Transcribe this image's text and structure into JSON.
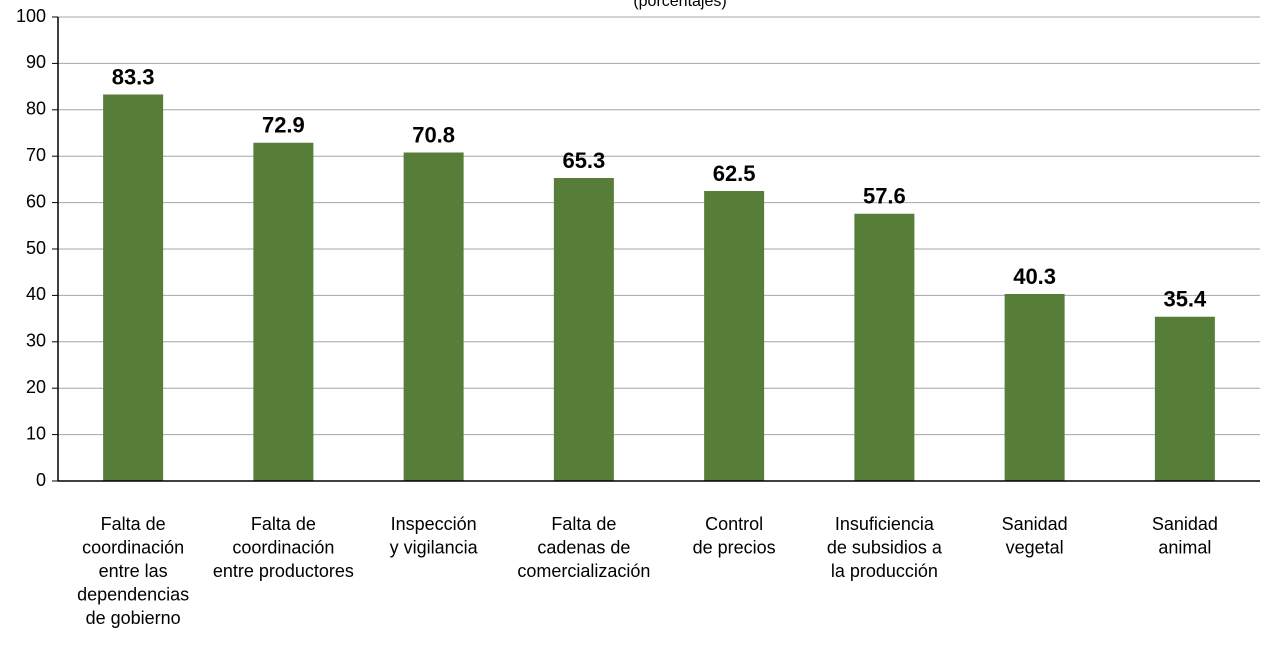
{
  "chart_data": {
    "type": "bar",
    "subtitle": "(porcentajes)",
    "categories": [
      [
        "Falta de",
        "coordinación",
        "entre las",
        "dependencias",
        "de gobierno"
      ],
      [
        "Falta de",
        "coordinación",
        "entre productores"
      ],
      [
        "Inspección",
        "y vigilancia"
      ],
      [
        "Falta de",
        "cadenas de",
        "comercialización"
      ],
      [
        "Control",
        "de precios"
      ],
      [
        "Insuficiencia",
        "de subsidios a",
        "la producción"
      ],
      [
        "Sanidad",
        "vegetal"
      ],
      [
        "Sanidad",
        "animal"
      ]
    ],
    "values": [
      83.3,
      72.9,
      70.8,
      65.3,
      62.5,
      57.6,
      40.3,
      35.4
    ],
    "color": "#577e38",
    "ylim": [
      0,
      100
    ],
    "yticks": [
      0,
      10,
      20,
      30,
      40,
      50,
      60,
      70,
      80,
      90,
      100
    ],
    "grid": true
  }
}
